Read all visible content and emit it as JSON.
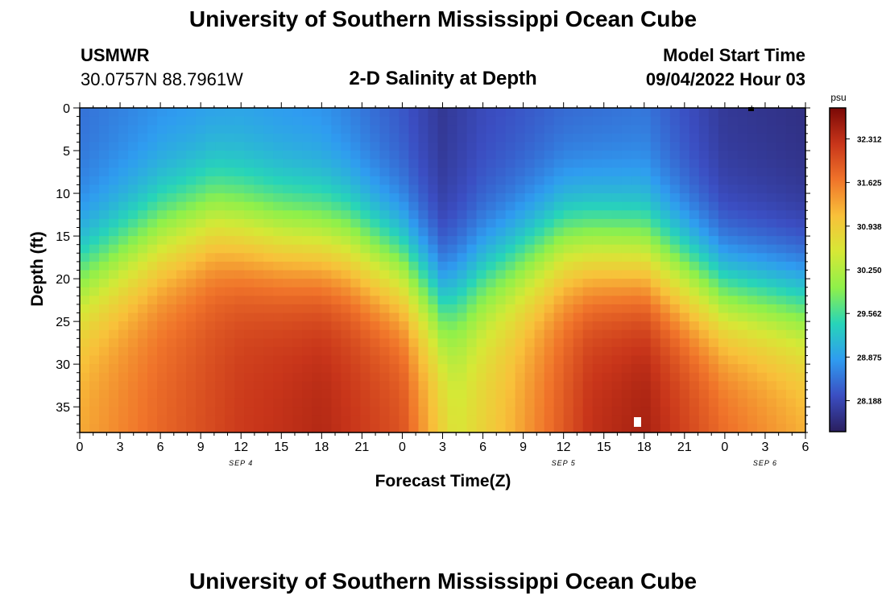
{
  "header": {
    "title": "University of Southern Mississippi Ocean Cube",
    "station": "USMWR",
    "coords": "30.0757N  88.7961W",
    "plot_title": "2-D Salinity at Depth",
    "model_start_label": "Model Start Time",
    "model_start_value": "09/04/2022 Hour 03"
  },
  "footer": {
    "title": "University of Southern Mississippi Ocean Cube"
  },
  "colors": {
    "colormap": [
      "#2a1e5e",
      "#3b4ec2",
      "#2f9cf0",
      "#27d4b9",
      "#8ff04a",
      "#d6e836",
      "#f8c13a",
      "#f0742a",
      "#c8351a",
      "#7a0806"
    ]
  },
  "chart_data": {
    "type": "heatmap",
    "xlabel": "Forecast Time(Z)",
    "ylabel": "Depth (ft)",
    "x_ticks": [
      "0",
      "3",
      "6",
      "9",
      "12",
      "15",
      "18",
      "21",
      "0",
      "3",
      "6",
      "9",
      "12",
      "15",
      "18",
      "21",
      "0",
      "3",
      "6"
    ],
    "x_range_hours": [
      0,
      54
    ],
    "date_labels": [
      {
        "label": "SEP 4",
        "hour": 12
      },
      {
        "label": "SEP 5",
        "hour": 36
      },
      {
        "label": "SEP 6",
        "hour": 51
      }
    ],
    "y_ticks": [
      0,
      5,
      10,
      15,
      20,
      25,
      30,
      35
    ],
    "ylim": [
      0,
      38
    ],
    "y_inverted": true,
    "colorbar": {
      "unit": "psu",
      "ticks": [
        "32.312",
        "31.625",
        "30.938",
        "30.250",
        "29.562",
        "28.875",
        "28.188"
      ],
      "range": [
        27.7,
        32.8
      ]
    },
    "top_layer_salinity": [
      {
        "hour": 0,
        "value": 28.5
      },
      {
        "hour": 6,
        "value": 28.7
      },
      {
        "hour": 12,
        "value": 28.8
      },
      {
        "hour": 18,
        "value": 28.7
      },
      {
        "hour": 24,
        "value": 28.3
      },
      {
        "hour": 27,
        "value": 28.0
      },
      {
        "hour": 30,
        "value": 28.2
      },
      {
        "hour": 36,
        "value": 28.4
      },
      {
        "hour": 42,
        "value": 28.5
      },
      {
        "hour": 48,
        "value": 28.0
      },
      {
        "hour": 54,
        "value": 27.9
      }
    ],
    "bottom_layer_salinity": [
      {
        "hour": 0,
        "value": 31.3
      },
      {
        "hour": 6,
        "value": 31.8
      },
      {
        "hour": 12,
        "value": 32.2
      },
      {
        "hour": 18,
        "value": 32.4
      },
      {
        "hour": 24,
        "value": 32.0
      },
      {
        "hour": 28,
        "value": 30.6
      },
      {
        "hour": 32,
        "value": 31.2
      },
      {
        "hour": 38,
        "value": 32.3
      },
      {
        "hour": 42,
        "value": 32.5
      },
      {
        "hour": 48,
        "value": 31.8
      },
      {
        "hour": 54,
        "value": 31.3
      }
    ],
    "halocline_depth_ft": [
      {
        "hour": 0,
        "value": 20
      },
      {
        "hour": 6,
        "value": 15
      },
      {
        "hour": 10,
        "value": 13
      },
      {
        "hour": 15,
        "value": 15
      },
      {
        "hour": 20,
        "value": 16
      },
      {
        "hour": 24,
        "value": 19
      },
      {
        "hour": 27,
        "value": 23
      },
      {
        "hour": 30,
        "value": 20
      },
      {
        "hour": 36,
        "value": 16
      },
      {
        "hour": 42,
        "value": 17
      },
      {
        "hour": 48,
        "value": 22
      },
      {
        "hour": 54,
        "value": 23
      }
    ]
  }
}
